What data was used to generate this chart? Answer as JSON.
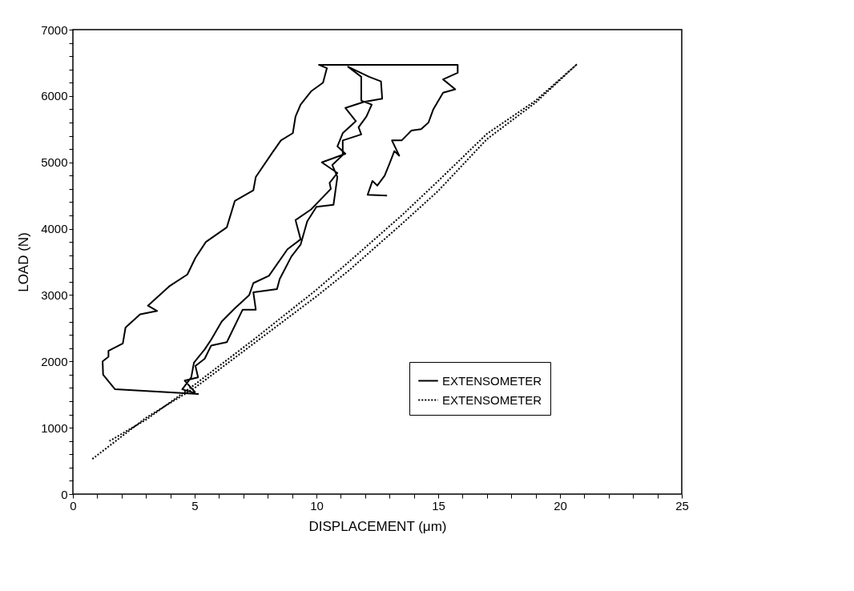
{
  "chart_data": {
    "type": "line",
    "xlabel": "DISPLACEMENT (μm)",
    "ylabel": "LOAD (N)",
    "xlim": [
      0,
      25
    ],
    "ylim": [
      0,
      7000
    ],
    "xticks": [
      0,
      {
        "value": 1,
        "label": null
      },
      {
        "value": 2,
        "label": null
      },
      {
        "value": 3,
        "label": null
      },
      {
        "value": 4,
        "label": null
      },
      5,
      {
        "value": 6,
        "label": null
      },
      {
        "value": 7,
        "label": null
      },
      {
        "value": 8,
        "label": null
      },
      {
        "value": 9,
        "label": null
      },
      10,
      {
        "value": 11,
        "label": null
      },
      {
        "value": 12,
        "label": null
      },
      {
        "value": 13,
        "label": null
      },
      {
        "value": 14,
        "label": null
      },
      15,
      {
        "value": 16,
        "label": null
      },
      {
        "value": 17,
        "label": null
      },
      {
        "value": 18,
        "label": null
      },
      {
        "value": 19,
        "label": null
      },
      20,
      {
        "value": 21,
        "label": null
      },
      {
        "value": 22,
        "label": null
      },
      {
        "value": 23,
        "label": null
      },
      {
        "value": 24,
        "label": null
      },
      25
    ],
    "yticks": [
      0,
      {
        "value": 200,
        "label": null
      },
      {
        "value": 400,
        "label": null
      },
      {
        "value": 600,
        "label": null
      },
      {
        "value": 800,
        "label": null
      },
      1000,
      {
        "value": 1200,
        "label": null
      },
      {
        "value": 1400,
        "label": null
      },
      {
        "value": 1600,
        "label": null
      },
      {
        "value": 1800,
        "label": null
      },
      2000,
      {
        "value": 2200,
        "label": null
      },
      {
        "value": 2400,
        "label": null
      },
      {
        "value": 2600,
        "label": null
      },
      {
        "value": 2800,
        "label": null
      },
      3000,
      {
        "value": 3200,
        "label": null
      },
      {
        "value": 3400,
        "label": null
      },
      {
        "value": 3600,
        "label": null
      },
      {
        "value": 3800,
        "label": null
      },
      4000,
      {
        "value": 4200,
        "label": null
      },
      {
        "value": 4400,
        "label": null
      },
      {
        "value": 4600,
        "label": null
      },
      {
        "value": 4800,
        "label": null
      },
      5000,
      {
        "value": 5200,
        "label": null
      },
      {
        "value": 5400,
        "label": null
      },
      {
        "value": 5600,
        "label": null
      },
      {
        "value": 5800,
        "label": null
      },
      6000,
      {
        "value": 6200,
        "label": null
      },
      {
        "value": 6400,
        "label": null
      },
      {
        "value": 6600,
        "label": null
      },
      {
        "value": 6800,
        "label": null
      },
      7000
    ],
    "grid": false,
    "legend": "bottom right",
    "marker": "none",
    "series": [
      {
        "name": "EXTENSOMETER",
        "color": "#000000",
        "line_style": "solid",
        "x": [
          12.9,
          12.1,
          12.3,
          12.5,
          12.8,
          13.0,
          13.2,
          13.4,
          13.1,
          13.5,
          13.9,
          14.3,
          14.6,
          14.8,
          15.2,
          15.7,
          15.2,
          15.8,
          15.8,
          10.1,
          10.43,
          10.27,
          9.78,
          9.35,
          9.14,
          9.03,
          8.54,
          8.16,
          7.51,
          7.41,
          6.65,
          6.32,
          5.46,
          5.03,
          4.7,
          3.95,
          3.08,
          3.46,
          2.76,
          2.16,
          2.05,
          1.46,
          1.46,
          1.22,
          1.24,
          1.73,
          4.16,
          5.14,
          4.49,
          4.86,
          4.97,
          5.41,
          5.68,
          6.11,
          6.65,
          7.24,
          7.41,
          8.05,
          8.81,
          9.35,
          9.14,
          9.78,
          10.59,
          10.54,
          10.86,
          10.22,
          11.19,
          10.86,
          11.08,
          11.62,
          11.19,
          11.95,
          12.7,
          12.65,
          12.16,
          11.3,
          11.84,
          11.84,
          12.27,
          12.05,
          11.73,
          11.84,
          11.08,
          11.08,
          10.65,
          10.86,
          10.7,
          10.0,
          9.62,
          9.35,
          8.97,
          8.49,
          8.38,
          7.41,
          7.51,
          6.97,
          6.32,
          5.68,
          5.41,
          5.03,
          5.14,
          4.59,
          5.03
        ],
        "values": [
          4500,
          4510,
          4720,
          4650,
          4800,
          4980,
          5170,
          5100,
          5330,
          5330,
          5480,
          5500,
          5600,
          5800,
          6050,
          6100,
          6250,
          6350,
          6470,
          6470,
          6420,
          6200,
          6070,
          5870,
          5690,
          5440,
          5330,
          5130,
          4780,
          4580,
          4420,
          4020,
          3800,
          3560,
          3310,
          3130,
          2840,
          2760,
          2710,
          2510,
          2270,
          2160,
          2070,
          2000,
          1800,
          1580,
          1530,
          1510,
          1580,
          1760,
          1980,
          2180,
          2330,
          2600,
          2800,
          3000,
          3180,
          3290,
          3690,
          3840,
          4130,
          4290,
          4600,
          4690,
          4840,
          5000,
          5130,
          5240,
          5440,
          5620,
          5820,
          5910,
          5960,
          6220,
          6290,
          6440,
          6290,
          5930,
          5870,
          5690,
          5530,
          5420,
          5330,
          5110,
          4960,
          4780,
          4360,
          4330,
          4110,
          3760,
          3580,
          3240,
          3090,
          3040,
          2780,
          2780,
          2290,
          2240,
          2040,
          1930,
          1760,
          1710,
          1530
        ]
      },
      {
        "name": "EXTENSOMETER",
        "color": "#000000",
        "line_style": "dotted",
        "x": [
          0.8,
          3,
          5,
          7.5,
          10,
          11.3,
          13.5,
          15,
          17,
          19,
          20.7,
          19,
          17,
          15,
          13.5,
          11.3,
          10,
          7.5,
          5,
          3,
          1.5
        ],
        "values": [
          530,
          1150,
          1600,
          2290,
          2980,
          3360,
          4070,
          4570,
          5350,
          5900,
          6480,
          5930,
          5430,
          4720,
          4200,
          3490,
          3080,
          2350,
          1650,
          1120,
          800
        ]
      }
    ]
  }
}
